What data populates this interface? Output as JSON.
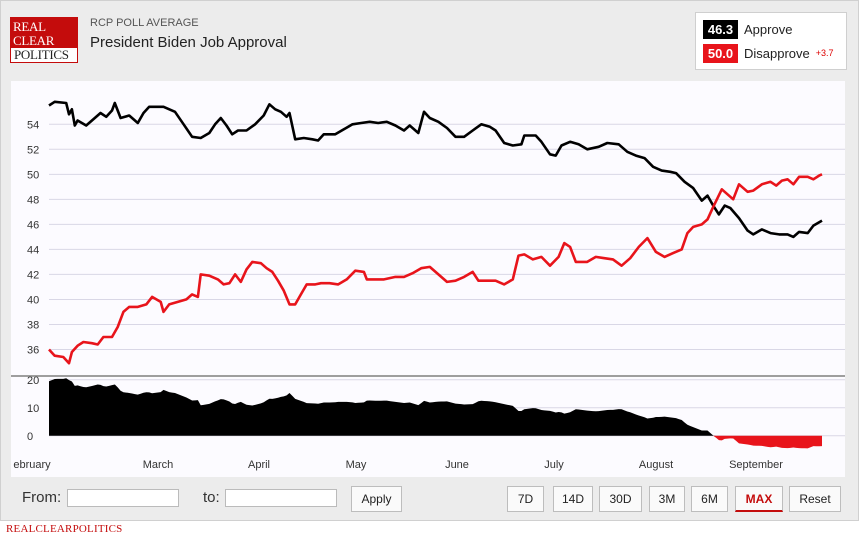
{
  "header": {
    "logo_lines": [
      "REAL",
      "CLEAR",
      "POLITICS"
    ],
    "subtitle": "RCP POLL AVERAGE",
    "title": "President Biden Job Approval"
  },
  "legend": {
    "approve": {
      "value": "46.3",
      "label": "Approve",
      "color": "#000000"
    },
    "disapprove": {
      "value": "50.0",
      "label": "Disapprove",
      "color": "#e8141b",
      "spread": "+3.7"
    }
  },
  "controls": {
    "from_label": "From:",
    "to_label": "to:",
    "apply_label": "Apply",
    "ranges": [
      "7D",
      "14D",
      "30D",
      "3M",
      "6M",
      "MAX"
    ],
    "active_range": "MAX",
    "reset_label": "Reset"
  },
  "footer": "REALCLEARPOLITICS",
  "chart_data": {
    "type": "line",
    "x_tick_labels": [
      "ebruary",
      "March",
      "April",
      "May",
      "June",
      "July",
      "August",
      "September"
    ],
    "x_unit": "day index (0 = start of series, late January)",
    "ylim": [
      34.6,
      56.5
    ],
    "y_ticks": [
      36,
      38,
      40,
      42,
      44,
      46,
      48,
      50,
      52,
      54
    ],
    "spread_ylim": [
      -4,
      21
    ],
    "spread_ticks": [
      0,
      10,
      20
    ],
    "grid": true,
    "series": [
      {
        "name": "Approve",
        "color": "#000000",
        "points": [
          [
            0,
            55.5
          ],
          [
            2,
            55.8
          ],
          [
            6,
            55.7
          ],
          [
            7,
            54.8
          ],
          [
            8,
            55.2
          ],
          [
            9,
            53.9
          ],
          [
            10,
            54.3
          ],
          [
            13,
            53.9
          ],
          [
            16,
            54.5
          ],
          [
            18,
            54.9
          ],
          [
            20,
            54.6
          ],
          [
            22,
            55.1
          ],
          [
            23,
            55.7
          ],
          [
            25,
            54.5
          ],
          [
            28,
            54.7
          ],
          [
            31,
            54.1
          ],
          [
            33,
            54.9
          ],
          [
            35,
            55.4
          ],
          [
            40,
            55.4
          ],
          [
            44,
            55.0
          ],
          [
            47,
            54.0
          ],
          [
            50,
            53.0
          ],
          [
            53,
            52.9
          ],
          [
            56,
            53.3
          ],
          [
            58,
            54.0
          ],
          [
            60,
            54.5
          ],
          [
            62,
            53.9
          ],
          [
            64,
            53.2
          ],
          [
            66,
            53.5
          ],
          [
            69,
            53.5
          ],
          [
            72,
            54.0
          ],
          [
            75,
            54.7
          ],
          [
            77,
            55.6
          ],
          [
            79,
            55.2
          ],
          [
            81,
            55.0
          ],
          [
            83,
            54.6
          ],
          [
            84,
            54.9
          ],
          [
            86,
            52.8
          ],
          [
            89,
            52.9
          ],
          [
            92,
            52.8
          ],
          [
            94,
            52.7
          ],
          [
            96,
            53.2
          ],
          [
            100,
            53.2
          ],
          [
            103,
            53.6
          ],
          [
            106,
            54.0
          ],
          [
            109,
            54.1
          ],
          [
            112,
            54.2
          ],
          [
            115,
            54.1
          ],
          [
            118,
            54.2
          ],
          [
            121,
            53.9
          ],
          [
            124,
            53.5
          ],
          [
            126,
            53.9
          ],
          [
            129,
            53.3
          ],
          [
            131,
            55.0
          ],
          [
            133,
            54.5
          ],
          [
            136,
            54.2
          ],
          [
            139,
            53.7
          ],
          [
            142,
            53.0
          ],
          [
            145,
            53.0
          ],
          [
            148,
            53.5
          ],
          [
            151,
            54.0
          ],
          [
            154,
            53.8
          ],
          [
            156,
            53.5
          ],
          [
            159,
            52.5
          ],
          [
            162,
            52.3
          ],
          [
            165,
            52.4
          ],
          [
            166,
            53.1
          ],
          [
            170,
            53.1
          ],
          [
            172,
            52.6
          ],
          [
            175,
            51.6
          ],
          [
            177,
            51.5
          ],
          [
            179,
            52.3
          ],
          [
            182,
            52.6
          ],
          [
            185,
            52.4
          ],
          [
            188,
            52.0
          ],
          [
            192,
            52.2
          ],
          [
            195,
            52.5
          ],
          [
            199,
            52.4
          ],
          [
            202,
            51.8
          ],
          [
            205,
            51.5
          ],
          [
            208,
            51.3
          ],
          [
            211,
            50.6
          ],
          [
            214,
            50.3
          ],
          [
            217,
            50.2
          ],
          [
            219,
            50.1
          ],
          [
            222,
            49.4
          ],
          [
            225,
            48.9
          ],
          [
            228,
            47.9
          ],
          [
            230,
            48.3
          ],
          [
            232,
            47.5
          ],
          [
            234,
            46.8
          ],
          [
            236,
            47.5
          ],
          [
            238,
            47.3
          ],
          [
            241,
            46.5
          ],
          [
            244,
            45.5
          ],
          [
            246,
            45.2
          ],
          [
            249,
            45.6
          ],
          [
            252,
            45.3
          ],
          [
            255,
            45.2
          ],
          [
            258,
            45.2
          ],
          [
            260,
            45.0
          ],
          [
            262,
            45.4
          ],
          [
            265,
            45.3
          ],
          [
            267,
            45.9
          ],
          [
            270,
            46.3
          ]
        ]
      },
      {
        "name": "Disapprove",
        "color": "#e8141b",
        "points": [
          [
            0,
            36.0
          ],
          [
            2,
            35.5
          ],
          [
            5,
            35.4
          ],
          [
            7,
            34.9
          ],
          [
            8,
            35.8
          ],
          [
            10,
            36.3
          ],
          [
            12,
            36.6
          ],
          [
            15,
            36.5
          ],
          [
            17,
            36.4
          ],
          [
            19,
            37.0
          ],
          [
            22,
            37.0
          ],
          [
            24,
            37.8
          ],
          [
            26,
            39.0
          ],
          [
            28,
            39.4
          ],
          [
            31,
            39.4
          ],
          [
            34,
            39.6
          ],
          [
            36,
            40.2
          ],
          [
            39,
            39.8
          ],
          [
            40,
            39.0
          ],
          [
            42,
            39.6
          ],
          [
            45,
            39.8
          ],
          [
            48,
            40.0
          ],
          [
            50,
            40.4
          ],
          [
            52,
            40.2
          ],
          [
            53,
            42.0
          ],
          [
            56,
            41.9
          ],
          [
            59,
            41.6
          ],
          [
            61,
            41.2
          ],
          [
            63,
            41.3
          ],
          [
            65,
            42.0
          ],
          [
            67,
            41.4
          ],
          [
            69,
            42.4
          ],
          [
            71,
            43.0
          ],
          [
            74,
            42.9
          ],
          [
            76,
            42.5
          ],
          [
            78,
            42.2
          ],
          [
            80,
            41.5
          ],
          [
            82,
            40.7
          ],
          [
            84,
            39.6
          ],
          [
            86,
            39.6
          ],
          [
            88,
            40.4
          ],
          [
            90,
            41.2
          ],
          [
            93,
            41.2
          ],
          [
            95,
            41.3
          ],
          [
            98,
            41.3
          ],
          [
            101,
            41.2
          ],
          [
            104,
            41.6
          ],
          [
            107,
            42.3
          ],
          [
            110,
            42.2
          ],
          [
            111,
            41.6
          ],
          [
            114,
            41.6
          ],
          [
            117,
            41.6
          ],
          [
            121,
            41.8
          ],
          [
            124,
            41.8
          ],
          [
            127,
            42.1
          ],
          [
            130,
            42.5
          ],
          [
            133,
            42.6
          ],
          [
            136,
            42.0
          ],
          [
            139,
            41.4
          ],
          [
            142,
            41.5
          ],
          [
            145,
            41.8
          ],
          [
            148,
            42.2
          ],
          [
            150,
            41.5
          ],
          [
            153,
            41.5
          ],
          [
            156,
            41.5
          ],
          [
            159,
            41.2
          ],
          [
            162,
            41.6
          ],
          [
            164,
            43.5
          ],
          [
            166,
            43.6
          ],
          [
            169,
            43.2
          ],
          [
            172,
            43.4
          ],
          [
            175,
            42.7
          ],
          [
            178,
            43.4
          ],
          [
            180,
            44.5
          ],
          [
            182,
            44.2
          ],
          [
            184,
            43.0
          ],
          [
            188,
            43.0
          ],
          [
            191,
            43.4
          ],
          [
            194,
            43.3
          ],
          [
            197,
            43.2
          ],
          [
            200,
            42.7
          ],
          [
            203,
            43.3
          ],
          [
            206,
            44.2
          ],
          [
            209,
            44.9
          ],
          [
            212,
            43.8
          ],
          [
            215,
            43.4
          ],
          [
            218,
            43.7
          ],
          [
            221,
            44.0
          ],
          [
            223,
            45.3
          ],
          [
            225,
            45.8
          ],
          [
            228,
            46.0
          ],
          [
            230,
            46.4
          ],
          [
            232,
            47.4
          ],
          [
            235,
            48.8
          ],
          [
            237,
            48.4
          ],
          [
            239,
            48.0
          ],
          [
            241,
            49.2
          ],
          [
            244,
            48.6
          ],
          [
            246,
            48.7
          ],
          [
            249,
            49.2
          ],
          [
            252,
            49.4
          ],
          [
            254,
            49.1
          ],
          [
            256,
            49.5
          ],
          [
            258,
            49.6
          ],
          [
            260,
            49.2
          ],
          [
            262,
            49.8
          ],
          [
            265,
            49.8
          ],
          [
            267,
            49.6
          ],
          [
            269,
            49.9
          ],
          [
            270,
            50.0
          ]
        ]
      }
    ]
  }
}
